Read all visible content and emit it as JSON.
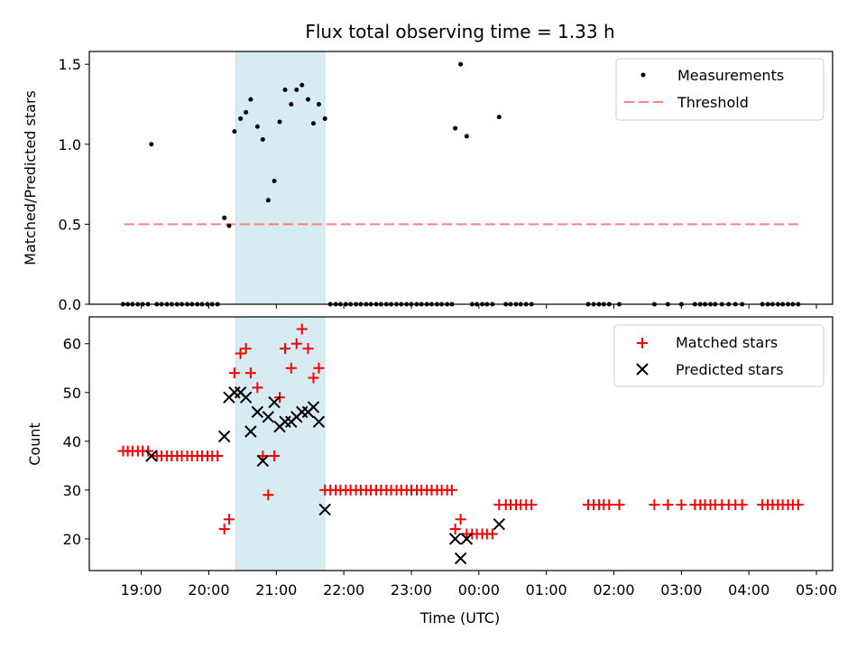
{
  "chart_data": [
    {
      "type": "scatter",
      "title": "Flux total observing time = 1.33 h",
      "xlabel": "",
      "ylabel": "Matched/Predicted stars",
      "xlim_hours": [
        18.23,
        29.24
      ],
      "ylim": [
        0,
        1.58
      ],
      "yticks": [
        0.0,
        0.5,
        1.0,
        1.5
      ],
      "ytick_labels": [
        "0.0",
        "0.5",
        "1.0",
        "1.5"
      ],
      "highlight_span_hours": [
        20.4,
        21.72
      ],
      "threshold": {
        "name": "Threshold",
        "y": 0.5,
        "x_start": 18.75,
        "x_end": 28.75,
        "color": "#ff8080"
      },
      "legend": {
        "loc": "upper right",
        "entries": [
          "Measurements",
          "Threshold"
        ]
      },
      "series": [
        {
          "name": "Measurements",
          "color": "#000000",
          "points": [
            [
              19.15,
              1.0
            ],
            [
              20.23,
              0.54
            ],
            [
              20.3,
              0.49
            ],
            [
              20.38,
              1.08
            ],
            [
              20.47,
              1.16
            ],
            [
              20.55,
              1.2
            ],
            [
              20.62,
              1.28
            ],
            [
              20.72,
              1.11
            ],
            [
              20.8,
              1.03
            ],
            [
              20.88,
              0.65
            ],
            [
              20.97,
              0.77
            ],
            [
              21.05,
              1.14
            ],
            [
              21.13,
              1.34
            ],
            [
              21.22,
              1.25
            ],
            [
              21.3,
              1.34
            ],
            [
              21.38,
              1.37
            ],
            [
              21.47,
              1.28
            ],
            [
              21.55,
              1.13
            ],
            [
              21.63,
              1.25
            ],
            [
              21.72,
              1.16
            ],
            [
              23.65,
              1.1
            ],
            [
              23.73,
              1.5
            ],
            [
              23.82,
              1.05
            ],
            [
              24.3,
              1.17
            ],
            [
              18.73,
              0
            ],
            [
              18.8,
              0
            ],
            [
              18.87,
              0
            ],
            [
              18.95,
              0
            ],
            [
              19.02,
              0
            ],
            [
              19.1,
              0
            ],
            [
              19.23,
              0
            ],
            [
              19.3,
              0
            ],
            [
              19.38,
              0
            ],
            [
              19.45,
              0
            ],
            [
              19.53,
              0
            ],
            [
              19.6,
              0
            ],
            [
              19.68,
              0
            ],
            [
              19.75,
              0
            ],
            [
              19.83,
              0
            ],
            [
              19.9,
              0
            ],
            [
              19.98,
              0
            ],
            [
              20.05,
              0
            ],
            [
              20.13,
              0
            ],
            [
              21.8,
              0
            ],
            [
              21.88,
              0
            ],
            [
              21.95,
              0
            ],
            [
              22.03,
              0
            ],
            [
              22.1,
              0
            ],
            [
              22.18,
              0
            ],
            [
              22.25,
              0
            ],
            [
              22.33,
              0
            ],
            [
              22.4,
              0
            ],
            [
              22.48,
              0
            ],
            [
              22.55,
              0
            ],
            [
              22.63,
              0
            ],
            [
              22.7,
              0
            ],
            [
              22.78,
              0
            ],
            [
              22.85,
              0
            ],
            [
              22.93,
              0
            ],
            [
              23.0,
              0
            ],
            [
              23.08,
              0
            ],
            [
              23.15,
              0
            ],
            [
              23.23,
              0
            ],
            [
              23.3,
              0
            ],
            [
              23.38,
              0
            ],
            [
              23.45,
              0
            ],
            [
              23.53,
              0
            ],
            [
              23.6,
              0
            ],
            [
              23.9,
              0
            ],
            [
              23.97,
              0
            ],
            [
              24.05,
              0
            ],
            [
              24.12,
              0
            ],
            [
              24.2,
              0
            ],
            [
              24.4,
              0
            ],
            [
              24.47,
              0
            ],
            [
              24.55,
              0
            ],
            [
              24.62,
              0
            ],
            [
              24.7,
              0
            ],
            [
              24.78,
              0
            ],
            [
              25.62,
              0
            ],
            [
              25.7,
              0
            ],
            [
              25.78,
              0
            ],
            [
              25.85,
              0
            ],
            [
              25.93,
              0
            ],
            [
              26.08,
              0
            ],
            [
              26.6,
              0
            ],
            [
              26.8,
              0
            ],
            [
              27.0,
              0
            ],
            [
              27.2,
              0
            ],
            [
              27.28,
              0
            ],
            [
              27.35,
              0
            ],
            [
              27.43,
              0
            ],
            [
              27.5,
              0
            ],
            [
              27.6,
              0
            ],
            [
              27.7,
              0
            ],
            [
              27.8,
              0
            ],
            [
              27.9,
              0
            ],
            [
              28.2,
              0
            ],
            [
              28.28,
              0
            ],
            [
              28.35,
              0
            ],
            [
              28.43,
              0
            ],
            [
              28.5,
              0
            ],
            [
              28.58,
              0
            ],
            [
              28.65,
              0
            ],
            [
              28.73,
              0
            ]
          ]
        }
      ]
    },
    {
      "type": "scatter",
      "title": "",
      "xlabel": "Time (UTC)",
      "ylabel": "Count",
      "xlim_hours": [
        18.23,
        29.24
      ],
      "ylim": [
        13.5,
        65.5
      ],
      "yticks": [
        20,
        30,
        40,
        50,
        60
      ],
      "ytick_labels": [
        "20",
        "30",
        "40",
        "50",
        "60"
      ],
      "xticks_hours": [
        19,
        20,
        21,
        22,
        23,
        24,
        25,
        26,
        27,
        28,
        29
      ],
      "xtick_labels": [
        "19:00",
        "20:00",
        "21:00",
        "22:00",
        "23:00",
        "00:00",
        "01:00",
        "02:00",
        "03:00",
        "04:00",
        "05:00"
      ],
      "highlight_span_hours": [
        20.4,
        21.72
      ],
      "legend": {
        "loc": "upper right",
        "entries": [
          "Matched stars",
          "Predicted stars"
        ]
      },
      "series": [
        {
          "name": "Matched stars",
          "marker": "plus",
          "color": "#ff0000",
          "points": [
            [
              18.73,
              38
            ],
            [
              18.8,
              38
            ],
            [
              18.87,
              38
            ],
            [
              18.95,
              38
            ],
            [
              19.02,
              38
            ],
            [
              19.1,
              38
            ],
            [
              19.23,
              37
            ],
            [
              19.3,
              37
            ],
            [
              19.38,
              37
            ],
            [
              19.45,
              37
            ],
            [
              19.53,
              37
            ],
            [
              19.6,
              37
            ],
            [
              19.68,
              37
            ],
            [
              19.75,
              37
            ],
            [
              19.83,
              37
            ],
            [
              19.9,
              37
            ],
            [
              19.98,
              37
            ],
            [
              20.05,
              37
            ],
            [
              20.13,
              37
            ],
            [
              20.23,
              22
            ],
            [
              20.3,
              24
            ],
            [
              20.38,
              54
            ],
            [
              20.47,
              58
            ],
            [
              20.55,
              59
            ],
            [
              20.62,
              54
            ],
            [
              20.72,
              51
            ],
            [
              20.8,
              37
            ],
            [
              20.88,
              29
            ],
            [
              20.97,
              37
            ],
            [
              21.05,
              49
            ],
            [
              21.13,
              59
            ],
            [
              21.22,
              55
            ],
            [
              21.3,
              60
            ],
            [
              21.38,
              63
            ],
            [
              21.47,
              59
            ],
            [
              21.55,
              53
            ],
            [
              21.63,
              55
            ],
            [
              21.72,
              30
            ],
            [
              21.8,
              30
            ],
            [
              21.88,
              30
            ],
            [
              21.95,
              30
            ],
            [
              22.03,
              30
            ],
            [
              22.1,
              30
            ],
            [
              22.18,
              30
            ],
            [
              22.25,
              30
            ],
            [
              22.33,
              30
            ],
            [
              22.4,
              30
            ],
            [
              22.48,
              30
            ],
            [
              22.55,
              30
            ],
            [
              22.63,
              30
            ],
            [
              22.7,
              30
            ],
            [
              22.78,
              30
            ],
            [
              22.85,
              30
            ],
            [
              22.93,
              30
            ],
            [
              23.0,
              30
            ],
            [
              23.08,
              30
            ],
            [
              23.15,
              30
            ],
            [
              23.23,
              30
            ],
            [
              23.3,
              30
            ],
            [
              23.38,
              30
            ],
            [
              23.45,
              30
            ],
            [
              23.53,
              30
            ],
            [
              23.6,
              30
            ],
            [
              23.65,
              22
            ],
            [
              23.73,
              24
            ],
            [
              23.82,
              21
            ],
            [
              23.9,
              21
            ],
            [
              23.97,
              21
            ],
            [
              24.05,
              21
            ],
            [
              24.12,
              21
            ],
            [
              24.2,
              21
            ],
            [
              24.3,
              27
            ],
            [
              24.4,
              27
            ],
            [
              24.47,
              27
            ],
            [
              24.55,
              27
            ],
            [
              24.62,
              27
            ],
            [
              24.7,
              27
            ],
            [
              24.78,
              27
            ],
            [
              25.62,
              27
            ],
            [
              25.7,
              27
            ],
            [
              25.78,
              27
            ],
            [
              25.85,
              27
            ],
            [
              25.93,
              27
            ],
            [
              26.08,
              27
            ],
            [
              26.6,
              27
            ],
            [
              26.8,
              27
            ],
            [
              27.0,
              27
            ],
            [
              27.2,
              27
            ],
            [
              27.28,
              27
            ],
            [
              27.35,
              27
            ],
            [
              27.43,
              27
            ],
            [
              27.5,
              27
            ],
            [
              27.6,
              27
            ],
            [
              27.7,
              27
            ],
            [
              27.8,
              27
            ],
            [
              27.9,
              27
            ],
            [
              28.2,
              27
            ],
            [
              28.28,
              27
            ],
            [
              28.35,
              27
            ],
            [
              28.43,
              27
            ],
            [
              28.5,
              27
            ],
            [
              28.58,
              27
            ],
            [
              28.65,
              27
            ],
            [
              28.73,
              27
            ]
          ]
        },
        {
          "name": "Predicted stars",
          "marker": "x",
          "color": "#000000",
          "points": [
            [
              19.15,
              37
            ],
            [
              20.23,
              41
            ],
            [
              20.3,
              49
            ],
            [
              20.38,
              50
            ],
            [
              20.47,
              50
            ],
            [
              20.55,
              49
            ],
            [
              20.62,
              42
            ],
            [
              20.72,
              46
            ],
            [
              20.8,
              36
            ],
            [
              20.88,
              45
            ],
            [
              20.97,
              48
            ],
            [
              21.05,
              43
            ],
            [
              21.13,
              44
            ],
            [
              21.22,
              44
            ],
            [
              21.3,
              45
            ],
            [
              21.38,
              46
            ],
            [
              21.47,
              46
            ],
            [
              21.55,
              47
            ],
            [
              21.63,
              44
            ],
            [
              21.72,
              26
            ],
            [
              23.65,
              20
            ],
            [
              23.73,
              16
            ],
            [
              23.82,
              20
            ],
            [
              24.3,
              23
            ]
          ]
        }
      ]
    }
  ]
}
